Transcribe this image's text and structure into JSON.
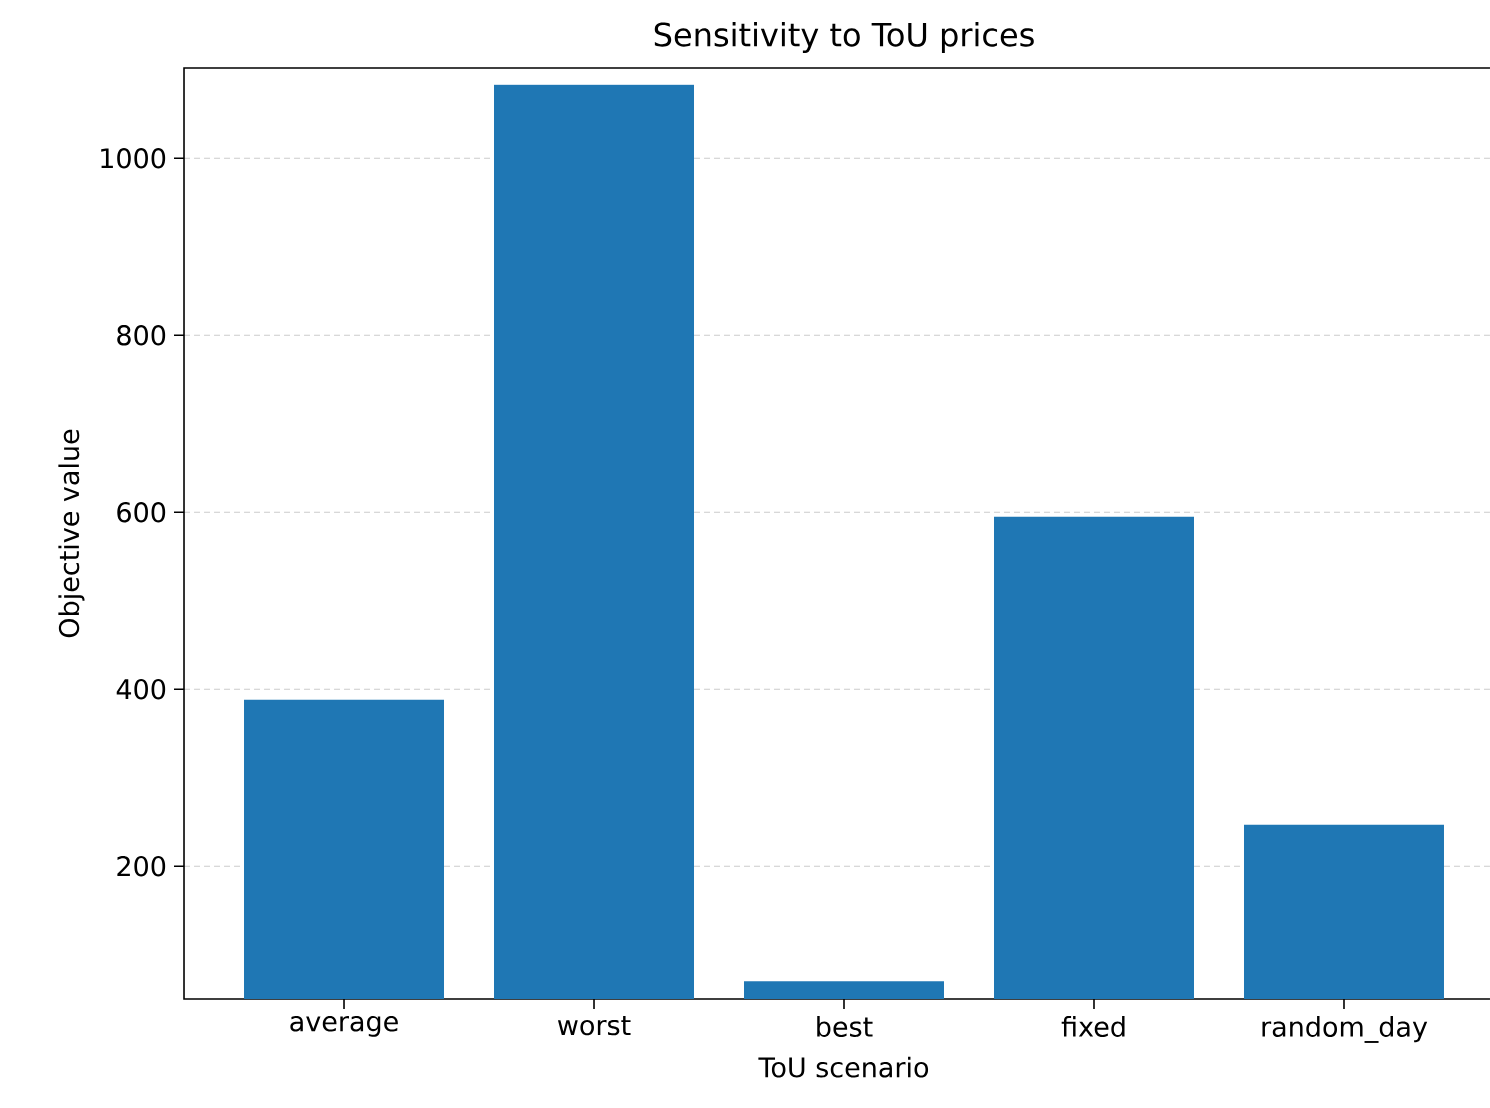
{
  "chart_data": {
    "type": "bar",
    "title": "Sensitivity to ToU prices",
    "xlabel": "ToU scenario",
    "ylabel": "Objective value",
    "categories": [
      "average",
      "worst",
      "best",
      "fixed",
      "random_day"
    ],
    "values": [
      388,
      1083,
      70,
      595,
      247
    ],
    "color": "#1f77b4",
    "ylim": [
      50,
      1102
    ],
    "yticks": [
      200,
      400,
      600,
      800,
      1000
    ],
    "grid": "y"
  }
}
